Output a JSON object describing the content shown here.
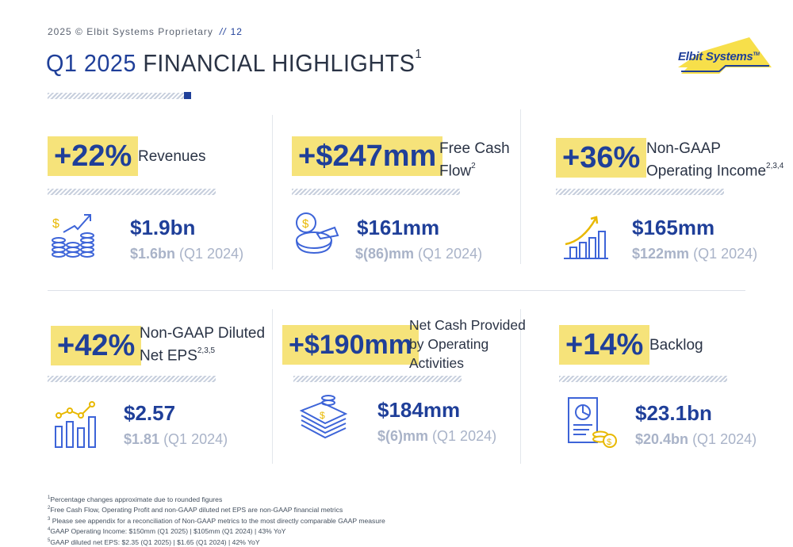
{
  "header": {
    "copyright": "2025 © Elbit Systems Proprietary",
    "separator": "//",
    "page_number": "12",
    "title_year": "Q1 2025",
    "title_rest": "FINANCIAL HIGHLIGHTS",
    "title_footnote": "1"
  },
  "logo": {
    "text": "Elbit Systems",
    "tm": "TM",
    "color_yellow": "#f7df4a",
    "color_blue": "#1f3f99"
  },
  "colors": {
    "accent_blue": "#1f3f99",
    "badge_yellow": "#f6e37a",
    "muted": "#a9b3c8"
  },
  "cards": [
    {
      "badge": "+22%",
      "metric_line1": "Revenues",
      "metric_line2": "",
      "metric_sup": "",
      "value": "$1.9bn",
      "prior_value": "$1.6bn",
      "prior_label": "(Q1 2024)",
      "icon": "coins-growth-icon"
    },
    {
      "badge": "+$247mm",
      "metric_line1": "Free Cash",
      "metric_line2": "Flow",
      "metric_sup": "2",
      "value": "$161mm",
      "prior_value": "$(86)mm",
      "prior_label": "(Q1 2024)",
      "icon": "coin-pie-icon"
    },
    {
      "badge": "+36%",
      "metric_line1": "Non-GAAP",
      "metric_line2": "Operating Income",
      "metric_sup": "2,3,4",
      "value": "$165mm",
      "prior_value": "$122mm",
      "prior_label": "(Q1 2024)",
      "icon": "bar-growth-icon"
    },
    {
      "badge": "+42%",
      "metric_line1": "Non-GAAP Diluted",
      "metric_line2": "Net EPS",
      "metric_sup": "2,3,5",
      "value": "$2.57",
      "prior_value": "$1.81",
      "prior_label": "(Q1 2024)",
      "icon": "bar-line-chart-icon"
    },
    {
      "badge": "+$190mm",
      "metric_line1": "Net Cash Provided",
      "metric_line2": "by Operating",
      "metric_line3": "Activities",
      "value": "$184mm",
      "prior_value": "$(6)mm",
      "prior_label": "(Q1 2024)",
      "icon": "cash-stack-icon"
    },
    {
      "badge": "+14%",
      "metric_line1": "Backlog",
      "metric_line2": "",
      "metric_sup": "",
      "value": "$23.1bn",
      "prior_value": "$20.4bn",
      "prior_label": "(Q1 2024)",
      "icon": "report-coins-icon"
    }
  ],
  "footnotes": [
    {
      "n": "1",
      "text": "Percentage changes approximate due to rounded figures"
    },
    {
      "n": "2",
      "text": "Free Cash Flow, Operating Profit and non-GAAP diluted net EPS are non-GAAP financial metrics"
    },
    {
      "n": "3",
      "text": " Please see appendix for a reconciliation of Non-GAAP metrics to the most directly comparable GAAP measure"
    },
    {
      "n": "4",
      "text": "GAAP Operating Income: $150mm (Q1 2025) | $105mm (Q1 2024) | 43% YoY"
    },
    {
      "n": "5",
      "text": "GAAP diluted net EPS: $2.35 (Q1 2025) | $1.65 (Q1 2024) | 42% YoY"
    }
  ]
}
